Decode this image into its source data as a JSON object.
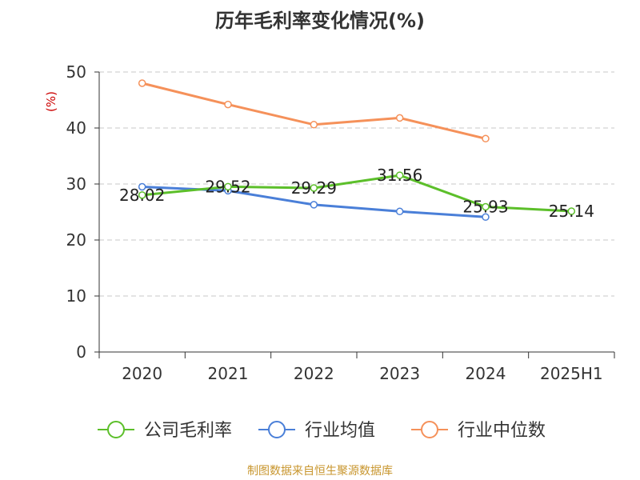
{
  "chart_data": {
    "type": "line",
    "title": "历年毛利率变化情况(%)",
    "ylabel": "(%)",
    "xlabel": "",
    "categories": [
      "2020",
      "2021",
      "2022",
      "2023",
      "2024",
      "2025H1"
    ],
    "ylim": [
      0,
      50
    ],
    "yticks": [
      0,
      10,
      20,
      30,
      40,
      50
    ],
    "grid": true,
    "legend_position": "bottom",
    "series": [
      {
        "name": "公司毛利率",
        "color": "#5cbf2a",
        "values": [
          28.02,
          29.52,
          29.29,
          31.56,
          25.93,
          25.14
        ],
        "labels": [
          "28.02",
          "29.52",
          "29.29",
          "31.56",
          "25.93",
          "25.14"
        ]
      },
      {
        "name": "行业均值",
        "color": "#4a7fd8",
        "values": [
          29.5,
          28.8,
          26.3,
          25.1,
          24.1,
          null
        ]
      },
      {
        "name": "行业中位数",
        "color": "#f5915a",
        "values": [
          48.0,
          44.2,
          40.6,
          41.8,
          38.1,
          null
        ]
      }
    ]
  },
  "source": "制图数据来自恒生聚源数据库"
}
